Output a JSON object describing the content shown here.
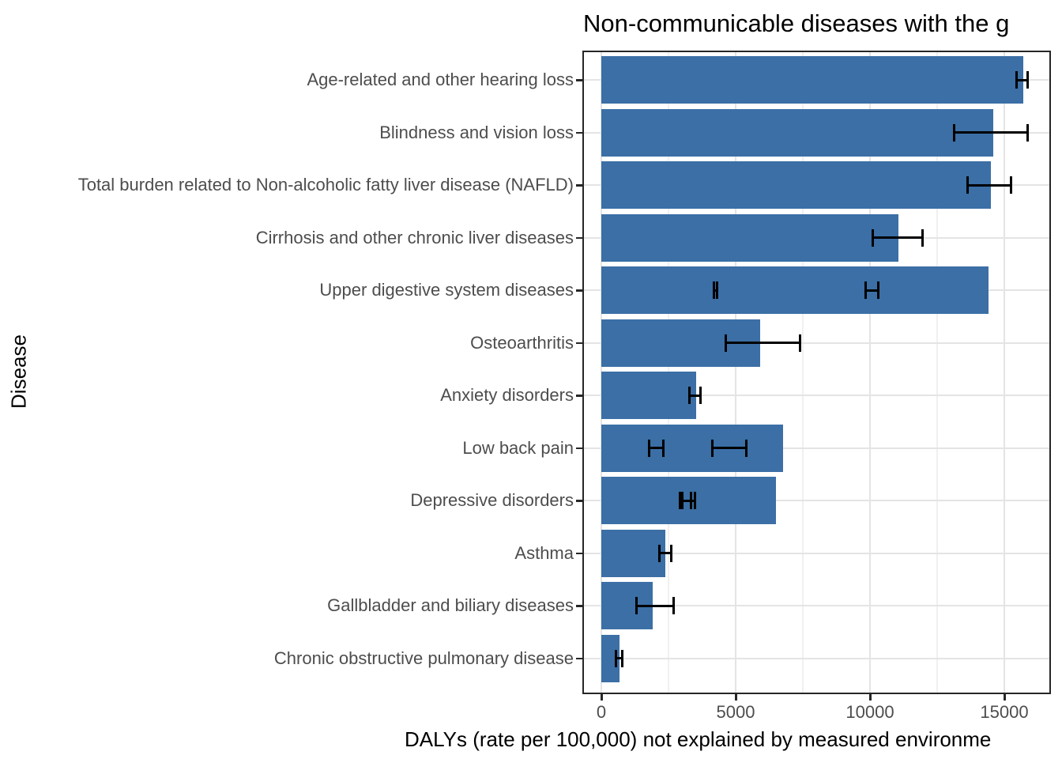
{
  "chart_data": {
    "type": "bar",
    "orientation": "horizontal",
    "title": "Non-communicable diseases with the g",
    "xlabel": "DALYs (rate per 100,000) not explained by measured environme",
    "ylabel": "Disease",
    "xlim": [
      -700,
      16800
    ],
    "x_major_ticks": [
      0,
      5000,
      10000,
      15000
    ],
    "x_minor_gridlines": [
      2500,
      7500,
      12500
    ],
    "grid": "on",
    "legend": "none",
    "categories": [
      "Age-related and other hearing loss",
      "Blindness and vision loss",
      "Total burden related to Non-alcoholic fatty liver disease (NAFLD)",
      "Cirrhosis and other chronic liver diseases",
      "Upper digestive system diseases",
      "Osteoarthritis",
      "Anxiety disorders",
      "Low back pain",
      "Depressive disorders",
      "Asthma",
      "Gallbladder and biliary diseases",
      "Chronic obstructive pulmonary disease"
    ],
    "values": [
      15700,
      14600,
      14500,
      11050,
      14400,
      5900,
      3530,
      6770,
      6510,
      2390,
      1910,
      680
    ],
    "error_bars": [
      [
        [
          15400,
          15900
        ]
      ],
      [
        [
          13100,
          15900
        ]
      ],
      [
        [
          13600,
          15300
        ]
      ],
      [
        [
          10050,
          12000
        ]
      ],
      [
        [
          4150,
          4360
        ],
        [
          9800,
          10340
        ]
      ],
      [
        [
          4600,
          7450
        ]
      ],
      [
        [
          3240,
          3740
        ]
      ],
      [
        [
          1740,
          2360
        ],
        [
          4090,
          5450
        ]
      ],
      [
        [
          2890,
          3390
        ],
        [
          2980,
          3530
        ]
      ],
      [
        [
          2120,
          2650
        ]
      ],
      [
        [
          1270,
          2740
        ]
      ],
      [
        [
          510,
          835
        ]
      ]
    ]
  },
  "colors": {
    "bar": "#3B6FA6",
    "error_bar": "#000000",
    "grid_major": "#E4E4E4",
    "grid_minor": "#F0F0F0",
    "panel_border": "#262626",
    "axis_text": "#4D4D4D",
    "title_text": "#000000"
  }
}
